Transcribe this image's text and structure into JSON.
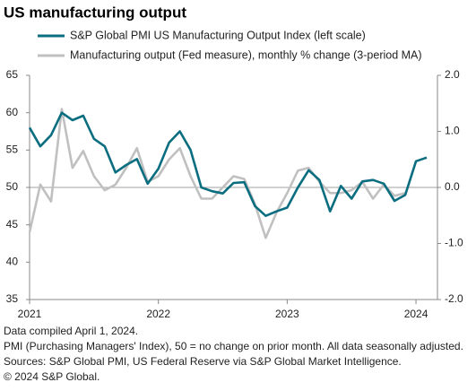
{
  "chart_data": {
    "type": "line",
    "title": "US manufacturing output",
    "notes": [
      "Data compiled April 1, 2024.",
      "PMI (Purchasing Managers' Index), 50 = no change on prior month. All data seasonally adjusted.",
      "Sources: S&P Global PMI, US Federal Reserve via S&P Global Market Intelligence.",
      "© 2024 S&P Global."
    ],
    "x": [
      2021,
      2021.0833,
      2021.1667,
      2021.25,
      2021.3333,
      2021.4167,
      2021.5,
      2021.5833,
      2021.6667,
      2021.75,
      2021.8333,
      2021.9167,
      2022,
      2022.0833,
      2022.1667,
      2022.25,
      2022.3333,
      2022.4167,
      2022.5,
      2022.5833,
      2022.6667,
      2022.75,
      2022.8333,
      2022.9167,
      2023,
      2023.0833,
      2023.1667,
      2023.25,
      2023.3333,
      2023.4167,
      2023.5,
      2023.5833,
      2023.6667,
      2023.75,
      2023.8333,
      2023.9167,
      2024,
      2024.0833
    ],
    "series": [
      {
        "name": "S&P Global PMI US Manufacturing Output Index (left scale)",
        "color": "#0b6e80",
        "values": [
          58,
          55.5,
          57,
          60,
          59,
          59.6,
          56.5,
          55.5,
          52,
          53,
          53.8,
          50.5,
          52.5,
          56,
          57.5,
          55,
          50,
          49.5,
          49.2,
          50.6,
          50.7,
          47.5,
          46.2,
          46.8,
          47.3,
          50,
          52.3,
          51,
          46.8,
          50.2,
          48.5,
          50.8,
          51,
          50.5,
          48.2,
          49,
          53.5,
          54
        ]
      },
      {
        "name": "Manufacturing output (Fed measure), monthly % change (3-period MA)",
        "color": "#c0c0c0",
        "axis": "y2",
        "values": [
          -0.8,
          0.05,
          -0.25,
          1.4,
          0.35,
          0.65,
          0.2,
          -0.05,
          0.05,
          0.35,
          0.7,
          0.1,
          0.2,
          0.5,
          0.7,
          0.2,
          -0.2,
          -0.2,
          0,
          0.2,
          0.15,
          -0.3,
          -0.9,
          -0.45,
          -0.1,
          0.3,
          0.35,
          0.1,
          -0.1,
          -0.1,
          -0.05,
          0.1,
          -0.2,
          0.05,
          -0.15,
          -0.1,
          null,
          null
        ]
      }
    ],
    "xlim": [
      2021,
      2024.1667
    ],
    "xticks": [
      2021,
      2022,
      2023,
      2024
    ],
    "ylim": [
      35,
      65
    ],
    "yticks": [
      35,
      40,
      45,
      50,
      55,
      60,
      65
    ],
    "y2lim": [
      -2,
      2
    ],
    "y2ticks": [
      {
        "value": -2,
        "label": "-2.0"
      },
      {
        "value": -1,
        "label": "-1.0"
      },
      {
        "value": 0,
        "label": "0.0"
      },
      {
        "value": 1,
        "label": "1.0"
      },
      {
        "value": 2,
        "label": "2.0"
      }
    ]
  }
}
